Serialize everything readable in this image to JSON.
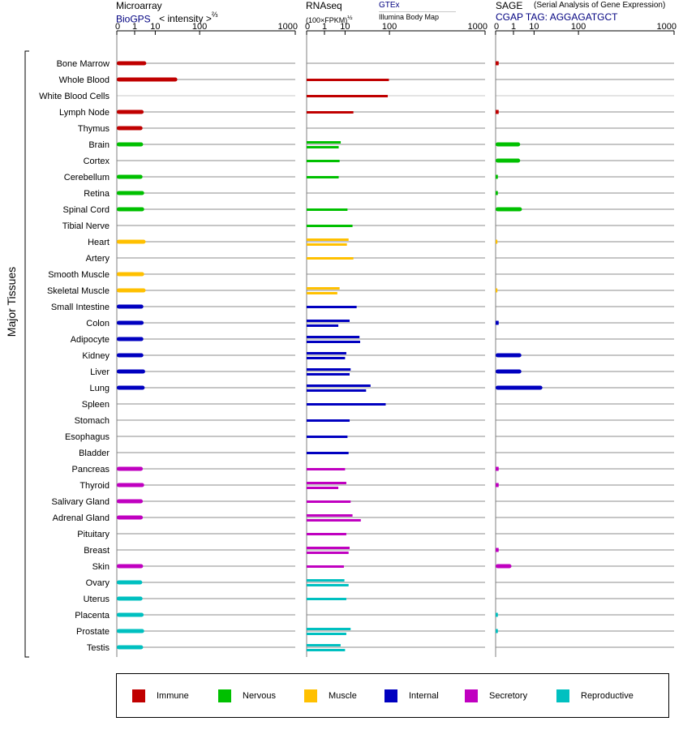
{
  "y_axis_title": "Major Tissues",
  "panels": {
    "microarray": {
      "title": "Microarray",
      "scale_label": "< intensity >",
      "scale_exponent": "⅔",
      "source": "BioGPS"
    },
    "rnaseq": {
      "title": "RNAseq",
      "scale_label": "(100×FPKM)",
      "scale_exponent": "½",
      "source_1": "GTEx",
      "source_2": "Illumina Body Map"
    },
    "sage": {
      "title": "SAGE",
      "subtitle": "(Serial Analysis of Gene Expression)",
      "tag_label": "CGAP TAG: AGGAGATGCT"
    }
  },
  "legend": [
    {
      "label": "Immune",
      "color": "#c00000"
    },
    {
      "label": "Nervous",
      "color": "#00c000"
    },
    {
      "label": "Muscle",
      "color": "#ffc000"
    },
    {
      "label": "Internal",
      "color": "#0000c0"
    },
    {
      "label": "Secretory",
      "color": "#c000c0"
    },
    {
      "label": "Reproductive",
      "color": "#00c0c0"
    }
  ],
  "chart_data": {
    "type": "bar",
    "orientation": "horizontal",
    "x_scale": "power",
    "x_ticks": [
      "0",
      "1",
      "10",
      "100",
      "1000"
    ],
    "xlim": [
      0,
      1000
    ],
    "categories": [
      "Bone Marrow",
      "Whole Blood",
      "White Blood Cells",
      "Lymph Node",
      "Thymus",
      "Brain",
      "Cortex",
      "Cerebellum",
      "Retina",
      "Spinal Cord",
      "Tibial Nerve",
      "Heart",
      "Artery",
      "Smooth Muscle",
      "Skeletal Muscle",
      "Small Intestine",
      "Colon",
      "Adipocyte",
      "Kidney",
      "Liver",
      "Lung",
      "Spleen",
      "Stomach",
      "Esophagus",
      "Bladder",
      "Pancreas",
      "Thyroid",
      "Salivary Gland",
      "Adrenal Gland",
      "Pituitary",
      "Breast",
      "Skin",
      "Ovary",
      "Uterus",
      "Placenta",
      "Prostate",
      "Testis"
    ],
    "groups": [
      "immune",
      "immune",
      "immune",
      "immune",
      "immune",
      "nervous",
      "nervous",
      "nervous",
      "nervous",
      "nervous",
      "nervous",
      "muscle",
      "muscle",
      "muscle",
      "muscle",
      "internal",
      "internal",
      "internal",
      "internal",
      "internal",
      "internal",
      "internal",
      "internal",
      "internal",
      "internal",
      "secretory",
      "secretory",
      "secretory",
      "secretory",
      "secretory",
      "secretory",
      "secretory",
      "reproductive",
      "reproductive",
      "reproductive",
      "reproductive",
      "reproductive"
    ],
    "group_colors": {
      "immune": "#c00000",
      "nervous": "#00c000",
      "muscle": "#ffc000",
      "internal": "#0000c0",
      "secretory": "#c000c0",
      "reproductive": "#00c0c0"
    },
    "series": [
      {
        "panel": "microarray",
        "values": [
          4.5,
          39,
          null,
          3.4,
          3.0,
          3.2,
          null,
          3.0,
          3.6,
          3.6,
          null,
          4.2,
          null,
          3.6,
          4.2,
          3.3,
          3.4,
          3.3,
          3.3,
          4.0,
          3.8,
          null,
          null,
          null,
          null,
          3.1,
          3.6,
          3.1,
          3.1,
          null,
          null,
          3.2,
          2.9,
          3.0,
          3.4,
          3.6,
          3.2
        ]
      },
      {
        "panel": "rnaseq_gtex",
        "values": [
          null,
          98,
          94,
          18,
          null,
          7.0,
          6.3,
          5.8,
          null,
          12,
          17,
          13,
          18,
          null,
          6.3,
          22,
          14,
          26,
          11,
          15,
          46,
          87,
          14,
          12,
          13,
          10,
          11,
          15,
          17,
          11,
          14,
          9.1,
          9.5,
          11,
          null,
          15,
          6.9
        ]
      },
      {
        "panel": "rnaseq_ibm",
        "values": [
          null,
          null,
          null,
          null,
          null,
          5.8,
          null,
          null,
          null,
          null,
          null,
          11.5,
          null,
          null,
          5.1,
          null,
          5.6,
          27,
          10,
          14,
          37,
          null,
          null,
          null,
          null,
          null,
          5.6,
          null,
          28,
          null,
          13,
          null,
          13,
          null,
          null,
          11,
          10
        ]
      },
      {
        "panel": "sage",
        "values": [
          0.005,
          null,
          null,
          0.005,
          null,
          2.6,
          2.6,
          0.002,
          0.002,
          3.2,
          null,
          0.001,
          null,
          null,
          0.001,
          null,
          0.005,
          null,
          3.0,
          3.0,
          18,
          null,
          null,
          null,
          null,
          0.005,
          0.005,
          null,
          null,
          null,
          0.005,
          0.7,
          null,
          null,
          0.002,
          0.002,
          null
        ]
      }
    ]
  }
}
